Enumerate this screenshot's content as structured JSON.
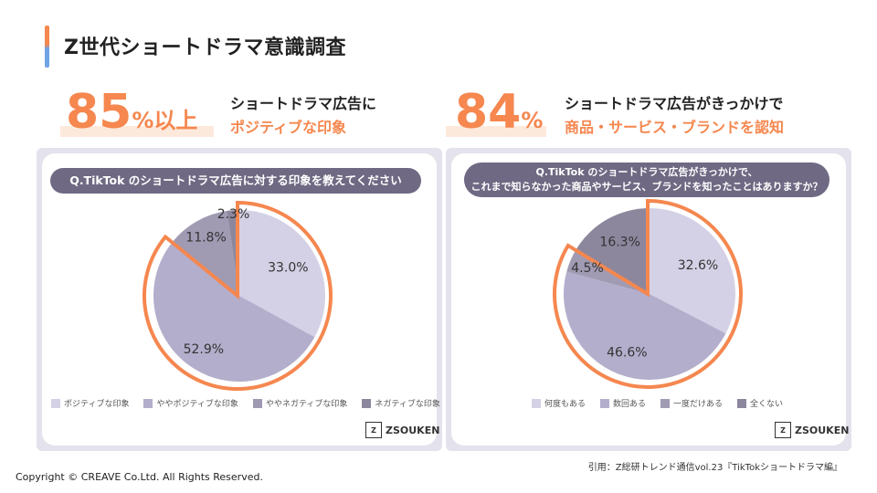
{
  "page_title": "Z世代ショートドラマ意識調査",
  "left": {
    "big_number": "85",
    "big_suffix": "%以上",
    "headline_line1": "ショートドラマ広告に",
    "headline_line2": "ポジティブな印象",
    "question": "Q.TikTok のショートドラマ広告に対する印象を教えてください"
  },
  "right": {
    "big_number": "84",
    "big_suffix": "%",
    "headline_line1": "ショートドラマ広告がきっかけで",
    "headline_line2": "商品・サービス・ブランドを認知",
    "question_line1": "Q.TikTok のショートドラマ広告がきっかけで、",
    "question_line2": "これまで知らなかった商品やサービス、ブランドを知ったことはありますか？"
  },
  "chart_data": [
    {
      "type": "pie",
      "categories": [
        "ポジティブな印象",
        "ややポジティブな印象",
        "ややネガティブな印象",
        "ネガティブな印象"
      ],
      "values": [
        33.0,
        52.9,
        11.8,
        2.3
      ],
      "labels": [
        "33.0%",
        "52.9%",
        "11.8%",
        "2.3%"
      ],
      "colors": [
        "#d4d1e6",
        "#b3aecc",
        "#a09ab3",
        "#8d879e"
      ],
      "highlight": "ポジティブな印象 + ややポジティブな印象",
      "legend": "bottom"
    },
    {
      "type": "pie",
      "categories": [
        "何度もある",
        "数回ある",
        "一度だけある",
        "全くない"
      ],
      "values": [
        32.6,
        46.6,
        4.5,
        16.3
      ],
      "labels": [
        "32.6%",
        "46.6%",
        "4.5%",
        "16.3%"
      ],
      "colors": [
        "#d4d1e6",
        "#b3aecc",
        "#a09ab3",
        "#8d879e"
      ],
      "highlight": "何度もある + 数回ある + 一度だけある",
      "legend": "bottom"
    }
  ],
  "logo_text": "ZSOUKEN",
  "source": "引用：Z総研トレンド通信vol.23『TikTokショートドラマ編』",
  "copyright": "Copyright © CREAVE Co.Ltd. All Rights Reserved.",
  "colors": {
    "accent": "#f5874f",
    "question_bg": "#6f6983",
    "panel_bg": "#e4e2ec"
  }
}
